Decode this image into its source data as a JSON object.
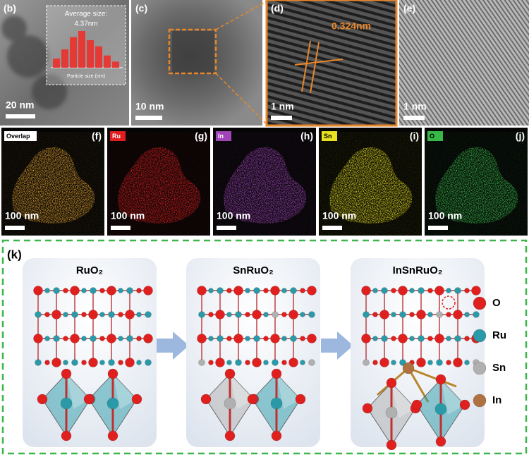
{
  "panels": {
    "b": {
      "label": "(b)",
      "scale": "20 nm",
      "inset": {
        "title": "Average size:",
        "value": "4.37nm",
        "xlabel": "Particle size (nm)",
        "histogram": [
          3,
          6,
          10,
          12,
          9,
          7,
          4,
          2
        ],
        "color": "#e53935"
      }
    },
    "c": {
      "label": "(c)",
      "scale": "10 nm"
    },
    "d": {
      "label": "(d)",
      "scale": "1 nm",
      "annotation": "0.324nm"
    },
    "e": {
      "label": "(e)",
      "scale": "1 nm"
    }
  },
  "maps": [
    {
      "label": "(f)",
      "tag": "Overlap",
      "scale": "100 nm",
      "color": "#ffffff"
    },
    {
      "label": "(g)",
      "tag": "Ru",
      "scale": "100 nm",
      "color": "#e01e1e"
    },
    {
      "label": "(h)",
      "tag": "In",
      "scale": "100 nm",
      "color": "#a044b8"
    },
    {
      "label": "(i)",
      "tag": "Sn",
      "scale": "100 nm",
      "color": "#e8e020"
    },
    {
      "label": "(j)",
      "tag": "O",
      "scale": "100 nm",
      "color": "#38b848"
    }
  ],
  "structures": {
    "label": "(k)",
    "models": [
      "RuO₂",
      "SnRuO₂",
      "InSnRuO₂"
    ],
    "legend": [
      {
        "name": "O",
        "color": "#e0201e"
      },
      {
        "name": "Ru",
        "color": "#2a9aa8"
      },
      {
        "name": "Sn",
        "color": "#b0b0b0"
      },
      {
        "name": "In",
        "color": "#b07040"
      }
    ]
  }
}
